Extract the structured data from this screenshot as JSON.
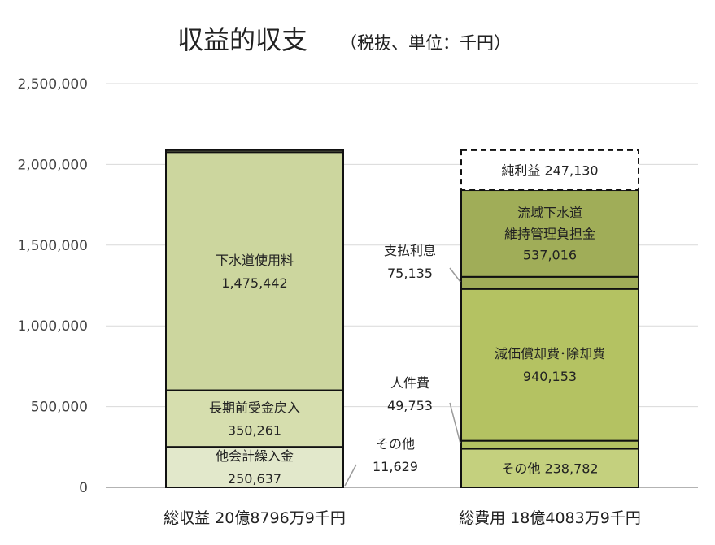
{
  "chart_data": {
    "type": "bar",
    "stacked": true,
    "title": "収益的収支",
    "subtitle": "（税抜、単位：千円）",
    "ylim": [
      0,
      2500000
    ],
    "ytick_values": [
      0,
      500000,
      1000000,
      1500000,
      2000000,
      2500000
    ],
    "ytick_labels": [
      "0",
      "500,000",
      "1,000,000",
      "1,500,000",
      "2,000,000",
      "2,500,000"
    ],
    "grid": true,
    "categories": [
      "総収益 20億8796万9千円",
      "総費用 18億4083万9千円"
    ],
    "bars": [
      {
        "segments": [
          {
            "label": [
              "他会計繰入金",
              "250,637"
            ],
            "value": 250637,
            "color": "#e2e8cb"
          },
          {
            "label": [
              "長期前受金戻入",
              "350,261"
            ],
            "value": 350261,
            "color": "#d6deae"
          },
          {
            "label": [
              "下水道使用料",
              "1,475,442"
            ],
            "value": 1475442,
            "color": "#ccd69e"
          },
          {
            "label": [],
            "value": 11629,
            "color": "#ccd69e",
            "callout": [
              "その他",
              "11,629"
            ]
          }
        ]
      },
      {
        "segments": [
          {
            "label": [
              "その他 238,782"
            ],
            "value": 238782,
            "color": "#c4d07e"
          },
          {
            "label": [],
            "value": 49753,
            "color": "#b4c262",
            "callout": [
              "人件費",
              "49,753"
            ]
          },
          {
            "label": [
              "減価償却費･除却費",
              "940,153"
            ],
            "value": 940153,
            "color": "#b4c262"
          },
          {
            "label": [],
            "value": 75135,
            "color": "#a0ad58",
            "callout": [
              "支払利息",
              "75,135"
            ]
          },
          {
            "label": [
              "流域下水道",
              "維持管理負担金",
              "537,016"
            ],
            "value": 537016,
            "color": "#a0ad58"
          },
          {
            "label": [
              "純利益 247,130"
            ],
            "value": 247130,
            "color": "#ffffff",
            "dashed": true
          }
        ]
      }
    ]
  }
}
